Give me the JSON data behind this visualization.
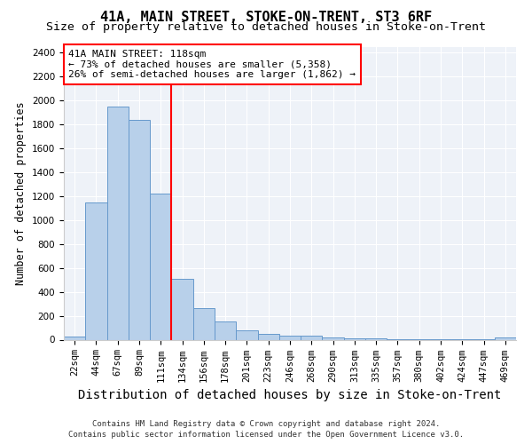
{
  "title": "41A, MAIN STREET, STOKE-ON-TRENT, ST3 6RF",
  "subtitle": "Size of property relative to detached houses in Stoke-on-Trent",
  "xlabel": "Distribution of detached houses by size in Stoke-on-Trent",
  "ylabel": "Number of detached properties",
  "categories": [
    "22sqm",
    "44sqm",
    "67sqm",
    "89sqm",
    "111sqm",
    "134sqm",
    "156sqm",
    "178sqm",
    "201sqm",
    "223sqm",
    "246sqm",
    "268sqm",
    "290sqm",
    "313sqm",
    "335sqm",
    "357sqm",
    "380sqm",
    "402sqm",
    "424sqm",
    "447sqm",
    "469sqm"
  ],
  "values": [
    25,
    1150,
    1950,
    1840,
    1220,
    510,
    260,
    155,
    80,
    50,
    35,
    35,
    20,
    10,
    8,
    5,
    5,
    5,
    5,
    5,
    15
  ],
  "bar_color": "#b8d0ea",
  "bar_edge_color": "#6699cc",
  "vline_x_idx": 4,
  "vline_color": "red",
  "annotation_title": "41A MAIN STREET: 118sqm",
  "annotation_line1": "← 73% of detached houses are smaller (5,358)",
  "annotation_line2": "26% of semi-detached houses are larger (1,862) →",
  "annotation_box_color": "white",
  "annotation_box_edge": "red",
  "ylim": [
    0,
    2450
  ],
  "yticks": [
    0,
    200,
    400,
    600,
    800,
    1000,
    1200,
    1400,
    1600,
    1800,
    2000,
    2200,
    2400
  ],
  "footer_line1": "Contains HM Land Registry data © Crown copyright and database right 2024.",
  "footer_line2": "Contains public sector information licensed under the Open Government Licence v3.0.",
  "bg_color": "#eef2f8",
  "title_fontsize": 11,
  "subtitle_fontsize": 9.5,
  "xlabel_fontsize": 10,
  "ylabel_fontsize": 8.5,
  "tick_fontsize": 7.5,
  "annotation_fontsize": 8,
  "footer_fontsize": 6.5
}
